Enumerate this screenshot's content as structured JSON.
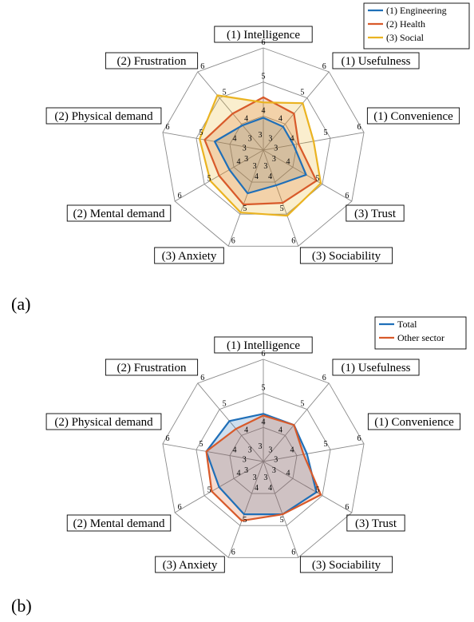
{
  "panels": [
    {
      "id": "a",
      "label": "(a)"
    },
    {
      "id": "b",
      "label": "(b)"
    }
  ],
  "chart_data": [
    {
      "type": "radar",
      "panel": "(a)",
      "axes": [
        "(1) Intelligence",
        "(1) Usefulness",
        "(1) Convenience",
        "(3) Trust",
        "(3) Sociability",
        "(3) Anxiety",
        "(2) Mental demand",
        "(2) Physical demand",
        "(2) Frustration"
      ],
      "rlim": [
        3,
        6
      ],
      "ticks": [
        "3",
        "4",
        "5",
        "6"
      ],
      "legend_position": "top-right",
      "grid": true,
      "series": [
        {
          "name": "(1) Engineering",
          "color": "#1f6fb8",
          "values": [
            3.95,
            3.9,
            3.9,
            4.45,
            4.1,
            4.35,
            4.15,
            4.45,
            3.95
          ]
        },
        {
          "name": "(2) Health",
          "color": "#d85a2a",
          "values": [
            4.55,
            4.4,
            4.05,
            4.8,
            4.65,
            4.7,
            4.5,
            4.75,
            4.4
          ]
        },
        {
          "name": "(3) Social",
          "color": "#eab321",
          "values": [
            4.4,
            4.8,
            4.5,
            4.95,
            5.05,
            4.95,
            4.8,
            4.9,
            5.1
          ]
        }
      ]
    },
    {
      "type": "radar",
      "panel": "(b)",
      "axes": [
        "(1) Intelligence",
        "(1) Usefulness",
        "(1) Convenience",
        "(3) Trust",
        "(3) Sociability",
        "(3) Anxiety",
        "(2) Mental demand",
        "(2) Physical demand",
        "(2) Frustration"
      ],
      "rlim": [
        3,
        6
      ],
      "ticks": [
        "3",
        "4",
        "5",
        "6"
      ],
      "legend_position": "top-right",
      "grid": true,
      "series": [
        {
          "name": "Total",
          "color": "#1f6fb8",
          "values": [
            4.4,
            4.4,
            4.3,
            4.8,
            4.65,
            4.65,
            4.5,
            4.7,
            4.55
          ]
        },
        {
          "name": "Other sector",
          "color": "#d85a2a",
          "values": [
            4.35,
            4.4,
            4.2,
            4.95,
            4.65,
            4.85,
            4.75,
            4.7,
            4.25
          ]
        }
      ]
    }
  ]
}
